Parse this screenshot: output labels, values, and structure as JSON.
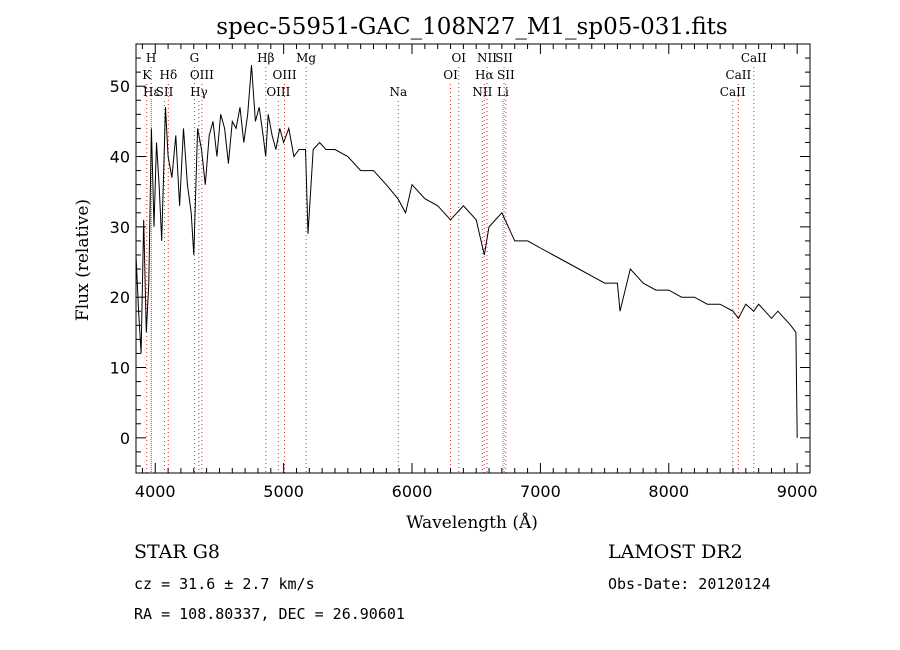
{
  "chart_data": {
    "type": "line",
    "title": "spec-55951-GAC_108N27_M1_sp05-031.fits",
    "xlabel": "Wavelength (Å)",
    "ylabel": "Flux (relative)",
    "xlim": [
      3850,
      9100
    ],
    "ylim": [
      -5,
      56
    ],
    "xticks": [
      4000,
      5000,
      6000,
      7000,
      8000,
      9000
    ],
    "yticks": [
      0,
      10,
      20,
      30,
      40,
      50
    ],
    "grid": false,
    "series": [
      {
        "x": [
          3850,
          3870,
          3890,
          3910,
          3930,
          3950,
          3970,
          3990,
          4010,
          4030,
          4050,
          4080,
          4100,
          4130,
          4160,
          4190,
          4220,
          4250,
          4280,
          4300,
          4330,
          4360,
          4390,
          4420,
          4450,
          4480,
          4510,
          4540,
          4570,
          4600,
          4630,
          4660,
          4690,
          4720,
          4750,
          4780,
          4810,
          4840,
          4860,
          4880,
          4910,
          4940,
          4970,
          5000,
          5040,
          5080,
          5120,
          5170,
          5190,
          5230,
          5280,
          5330,
          5400,
          5500,
          5600,
          5700,
          5800,
          5890,
          5950,
          6000,
          6100,
          6200,
          6300,
          6400,
          6500,
          6563,
          6600,
          6700,
          6800,
          6900,
          7000,
          7100,
          7200,
          7300,
          7400,
          7500,
          7600,
          7620,
          7700,
          7800,
          7900,
          8000,
          8100,
          8200,
          8300,
          8400,
          8500,
          8542,
          8600,
          8662,
          8700,
          8800,
          8850,
          8900,
          8950,
          8990,
          9000
        ],
        "values": [
          26,
          18,
          12,
          31,
          15,
          22,
          44,
          30,
          42,
          36,
          28,
          47,
          40,
          37,
          43,
          33,
          44,
          36,
          32,
          26,
          44,
          41,
          36,
          43,
          45,
          40,
          46,
          44,
          39,
          45,
          44,
          47,
          42,
          46,
          53,
          45,
          47,
          43,
          40,
          46,
          43,
          41,
          44,
          42,
          44,
          40,
          41,
          41,
          29,
          41,
          42,
          41,
          41,
          40,
          38,
          38,
          36,
          34,
          32,
          36,
          34,
          33,
          31,
          33,
          31,
          26,
          30,
          32,
          28,
          28,
          27,
          26,
          25,
          24,
          23,
          22,
          22,
          18,
          24,
          22,
          21,
          21,
          20,
          20,
          19,
          19,
          18,
          17,
          19,
          18,
          19,
          17,
          18,
          17,
          16,
          15,
          0
        ]
      }
    ],
    "lines": [
      {
        "label": "H",
        "x": 3968,
        "row": 0
      },
      {
        "label": "K",
        "x": 3934,
        "row": 1
      },
      {
        "label": "Hε",
        "x": 3970,
        "row": 2
      },
      {
        "label": "Hδ",
        "x": 4102,
        "row": 1
      },
      {
        "label": "SII",
        "x": 4072,
        "row": 2
      },
      {
        "label": "G",
        "x": 4305,
        "row": 0
      },
      {
        "label": "OIII",
        "x": 4363,
        "row": 1
      },
      {
        "label": "Hγ",
        "x": 4340,
        "row": 2
      },
      {
        "label": "Hβ",
        "x": 4861,
        "row": 0
      },
      {
        "label": "OIII",
        "x": 5007,
        "row": 1
      },
      {
        "label": "OIII",
        "x": 4959,
        "row": 2
      },
      {
        "label": "Mg",
        "x": 5175,
        "row": 0
      },
      {
        "label": "Na",
        "x": 5893,
        "row": 2
      },
      {
        "label": "OI",
        "x": 6364,
        "row": 0
      },
      {
        "label": "OI",
        "x": 6300,
        "row": 1
      },
      {
        "label": "NII",
        "x": 6584,
        "row": 0
      },
      {
        "label": "SII",
        "x": 6717,
        "row": 0
      },
      {
        "label": "Hα",
        "x": 6563,
        "row": 1
      },
      {
        "label": "SII",
        "x": 6731,
        "row": 1
      },
      {
        "label": "NII",
        "x": 6548,
        "row": 2
      },
      {
        "label": "Li",
        "x": 6708,
        "row": 2
      },
      {
        "label": "CaII",
        "x": 8662,
        "row": 0
      },
      {
        "label": "CaII",
        "x": 8542,
        "row": 1
      },
      {
        "label": "CaII",
        "x": 8498,
        "row": 2
      }
    ],
    "line_color": "#000000",
    "marker_color": "#cc3333"
  },
  "info": {
    "class": "STAR    G8",
    "survey": "LAMOST DR2",
    "cz": "cz = 31.6 ± 2.7 km/s",
    "obs_date": "Obs-Date: 20120124",
    "coords": "RA = 108.80337, DEC =  26.90601"
  }
}
